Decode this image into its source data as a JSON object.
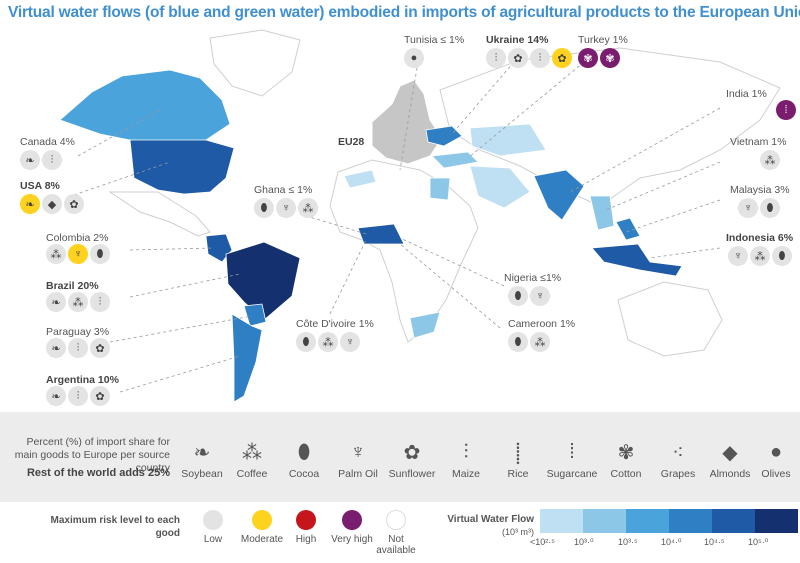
{
  "title": "Virtual water flows (of blue and green water) embodied in imports of agricultural products to the European Union",
  "colors": {
    "land": "#ffffff",
    "land_stroke": "#cfcfcf",
    "eu": "#c6c6c6",
    "c1": "#bfe0f2",
    "c2": "#8dc7e8",
    "c3": "#4aa3db",
    "c4": "#2f7fc4",
    "c5": "#1f5aa7",
    "c6": "#14306e",
    "moderate": "#ffd21f",
    "high": "#c4161c",
    "very_high": "#7b1d6f"
  },
  "countries": [
    {
      "id": "tunisia",
      "label": "Tunisia ≤ 1%",
      "bold": false,
      "icons": [
        {
          "icon": "olives-icon",
          "risk": "low"
        }
      ]
    },
    {
      "id": "ukraine",
      "label": "Ukraine 14%",
      "bold": true,
      "icons": [
        {
          "icon": "maize-icon",
          "risk": "low"
        },
        {
          "icon": "sunflower-icon",
          "risk": "low"
        },
        {
          "icon": "maize-icon",
          "risk": "low"
        },
        {
          "icon": "sunflower-icon",
          "risk": "moderate"
        }
      ]
    },
    {
      "id": "turkey",
      "label": "Turkey 1%",
      "bold": false,
      "icons": [
        {
          "icon": "cotton-icon",
          "risk": "very_high"
        },
        {
          "icon": "cotton-icon",
          "risk": "very_high"
        }
      ]
    },
    {
      "id": "india",
      "label": "India 1%",
      "bold": false,
      "icons": [
        {
          "icon": "sugarcane-icon",
          "risk": "very_high"
        }
      ]
    },
    {
      "id": "canada",
      "label": "Canada 4%",
      "bold": false,
      "icons": [
        {
          "icon": "soybean-icon",
          "risk": "low"
        },
        {
          "icon": "maize-icon",
          "risk": "low"
        }
      ]
    },
    {
      "id": "usa",
      "label": "USA  8%",
      "bold": true,
      "icons": [
        {
          "icon": "soybean-icon",
          "risk": "moderate"
        },
        {
          "icon": "almonds-icon",
          "risk": "low"
        },
        {
          "icon": "sunflower-icon",
          "risk": "low"
        }
      ]
    },
    {
      "id": "vietnam",
      "label": "Vietnam 1%",
      "bold": false,
      "icons": [
        {
          "icon": "coffee-icon",
          "risk": "low"
        }
      ]
    },
    {
      "id": "ghana",
      "label": "Ghana ≤ 1%",
      "bold": false,
      "icons": [
        {
          "icon": "cocoa-icon",
          "risk": "low"
        },
        {
          "icon": "palm-oil-icon",
          "risk": "low"
        },
        {
          "icon": "coffee-icon",
          "risk": "low"
        }
      ]
    },
    {
      "id": "malaysia",
      "label": "Malaysia 3%",
      "bold": false,
      "icons": [
        {
          "icon": "palm-oil-icon",
          "risk": "low"
        },
        {
          "icon": "cocoa-icon",
          "risk": "low"
        }
      ]
    },
    {
      "id": "colombia",
      "label": "Colombia 2%",
      "bold": false,
      "icons": [
        {
          "icon": "coffee-icon",
          "risk": "low"
        },
        {
          "icon": "palm-oil-icon",
          "risk": "moderate"
        },
        {
          "icon": "cocoa-icon",
          "risk": "low"
        }
      ]
    },
    {
      "id": "indonesia",
      "label": "Indonesia 6%",
      "bold": true,
      "icons": [
        {
          "icon": "palm-oil-icon",
          "risk": "low"
        },
        {
          "icon": "coffee-icon",
          "risk": "low"
        },
        {
          "icon": "cocoa-icon",
          "risk": "low"
        }
      ]
    },
    {
      "id": "brazil",
      "label": "Brazil 20%",
      "bold": true,
      "icons": [
        {
          "icon": "soybean-icon",
          "risk": "low"
        },
        {
          "icon": "coffee-icon",
          "risk": "low"
        },
        {
          "icon": "maize-icon",
          "risk": "low"
        }
      ]
    },
    {
      "id": "nigeria",
      "label": "Nigeria ≤1%",
      "bold": false,
      "icons": [
        {
          "icon": "cocoa-icon",
          "risk": "low"
        },
        {
          "icon": "palm-oil-icon",
          "risk": "low"
        }
      ]
    },
    {
      "id": "paraguay",
      "label": "Paraguay 3%",
      "bold": false,
      "icons": [
        {
          "icon": "soybean-icon",
          "risk": "low"
        },
        {
          "icon": "maize-icon",
          "risk": "low"
        },
        {
          "icon": "sunflower-icon",
          "risk": "low"
        }
      ]
    },
    {
      "id": "cote_divoire",
      "label": "Côte D'ivoire 1%",
      "bold": false,
      "icons": [
        {
          "icon": "cocoa-icon",
          "risk": "low"
        },
        {
          "icon": "coffee-icon",
          "risk": "low"
        },
        {
          "icon": "palm-oil-icon",
          "risk": "low"
        }
      ]
    },
    {
      "id": "cameroon",
      "label": "Cameroon 1%",
      "bold": false,
      "icons": [
        {
          "icon": "cocoa-icon",
          "risk": "low"
        },
        {
          "icon": "coffee-icon",
          "risk": "low"
        }
      ]
    },
    {
      "id": "argentina",
      "label": "Argentina 10%",
      "bold": true,
      "icons": [
        {
          "icon": "soybean-icon",
          "risk": "low"
        },
        {
          "icon": "maize-icon",
          "risk": "low"
        },
        {
          "icon": "sunflower-icon",
          "risk": "low"
        }
      ]
    }
  ],
  "eu_label": "EU28",
  "legend": {
    "description": "Percent (%) of import share for main goods to Europe per source country",
    "rest": "Rest of the world adds 25%",
    "goods": [
      {
        "label": "Soybean",
        "icon": "soybean-icon",
        "glyph": "❧"
      },
      {
        "label": "Coffee",
        "icon": "coffee-icon",
        "glyph": "⁂"
      },
      {
        "label": "Cocoa",
        "icon": "cocoa-icon",
        "glyph": "⬮"
      },
      {
        "label": "Palm Oil",
        "icon": "palm-oil-icon",
        "glyph": "♆"
      },
      {
        "label": "Sunflower",
        "icon": "sunflower-icon",
        "glyph": "✿"
      },
      {
        "label": "Maize",
        "icon": "maize-icon",
        "glyph": "⫶"
      },
      {
        "label": "Rice",
        "icon": "rice-icon",
        "glyph": "⸽"
      },
      {
        "label": "Sugarcane",
        "icon": "sugarcane-icon",
        "glyph": "⁞"
      },
      {
        "label": "Cotton",
        "icon": "cotton-icon",
        "glyph": "✾"
      },
      {
        "label": "Grapes",
        "icon": "grapes-icon",
        "glyph": "⁖"
      },
      {
        "label": "Almonds",
        "icon": "almonds-icon",
        "glyph": "◆"
      },
      {
        "label": "Olives",
        "icon": "olives-icon",
        "glyph": "●"
      }
    ],
    "risk_title": "Maximum risk level to each good",
    "risk_levels": [
      {
        "label": "Low",
        "color": "#e3e3e3"
      },
      {
        "label": "Moderate",
        "color": "#ffd21f"
      },
      {
        "label": "High",
        "color": "#c4161c"
      },
      {
        "label": "Very high",
        "color": "#7b1d6f"
      },
      {
        "label": "Not available",
        "color": "#ffffff"
      }
    ],
    "vwf_title": "Virtual Water Flow",
    "vwf_unit": "(10³ m³)",
    "scale_colors": [
      "#bfe0f2",
      "#8dc7e8",
      "#4aa3db",
      "#2f7fc4",
      "#1f5aa7",
      "#14306e"
    ],
    "scale_ticks": [
      "<10²·⁵",
      "10³·⁰",
      "10³·⁵",
      "10⁴·⁰",
      "10⁴·⁵",
      "10⁵·⁰"
    ]
  }
}
